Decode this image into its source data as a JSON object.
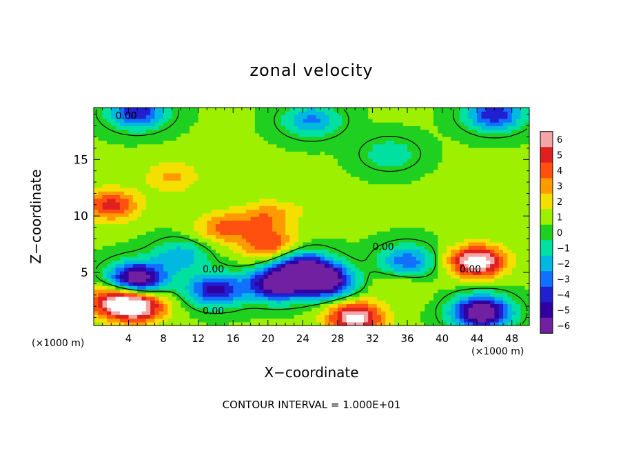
{
  "chart_data": {
    "type": "heatmap",
    "title": "zonal velocity",
    "xlabel": "X−coordinate",
    "ylabel": "Z−coordinate",
    "x_unit_left": "(×1000 m)",
    "x_unit_right": "(×1000 m)",
    "xlim": [
      0,
      50
    ],
    "ylim": [
      0.3,
      19.6
    ],
    "x_ticks": [
      4,
      8,
      12,
      16,
      20,
      24,
      28,
      32,
      36,
      40,
      44,
      48
    ],
    "y_ticks": [
      5,
      10,
      15
    ],
    "colorbar": {
      "range": [
        -6,
        6
      ],
      "ticks": [
        "6",
        "5",
        "4",
        "3",
        "2",
        "1",
        "0",
        "−1",
        "−2",
        "−3",
        "−4",
        "−5",
        "−6"
      ],
      "colors": [
        "#f4a6a6",
        "#e02020",
        "#ff5010",
        "#ff9a00",
        "#f4e000",
        "#9cf000",
        "#20d020",
        "#00e0a0",
        "#00b8e0",
        "#1070ff",
        "#2020d0",
        "#3000a0",
        "#7020a0"
      ]
    },
    "background_value": 0.5,
    "contour_level_label": "0.00",
    "features": [
      {
        "x": 2.0,
        "z": 11.0,
        "value": 4.5
      },
      {
        "x": 15.0,
        "z": 9.0,
        "value": 3.5
      },
      {
        "x": 20.0,
        "z": 10.0,
        "value": 3.0
      },
      {
        "x": 20.0,
        "z": 7.5,
        "value": 4.0
      },
      {
        "x": 9.0,
        "z": 13.5,
        "value": 2.5
      },
      {
        "x": 26.0,
        "z": 11.0,
        "value": 1.2
      },
      {
        "x": 5.0,
        "z": 4.5,
        "value": -6.5
      },
      {
        "x": 14.0,
        "z": 3.5,
        "value": -4.5
      },
      {
        "x": 24.0,
        "z": 5.5,
        "value": -5.0
      },
      {
        "x": 26.5,
        "z": 4.2,
        "value": -6.5
      },
      {
        "x": 21.0,
        "z": 4.0,
        "value": -6.2
      },
      {
        "x": 36.0,
        "z": 6.0,
        "value": -3.0
      },
      {
        "x": 44.0,
        "z": 6.0,
        "value": 7.0
      },
      {
        "x": 44.5,
        "z": 1.5,
        "value": -7.0
      },
      {
        "x": 2.0,
        "z": 2.5,
        "value": 4.5
      },
      {
        "x": 5.0,
        "z": 2.0,
        "value": 6.5
      },
      {
        "x": 30.0,
        "z": 1.0,
        "value": 6.5
      },
      {
        "x": 35.0,
        "z": 4.0,
        "value": 1.5
      },
      {
        "x": 34.0,
        "z": 15.5,
        "value": -1.2
      },
      {
        "x": 25.0,
        "z": 18.5,
        "value": -2.5
      },
      {
        "x": 5.0,
        "z": 19.2,
        "value": -4.0
      },
      {
        "x": 46.0,
        "z": 19.0,
        "value": -4.0
      },
      {
        "x": 43.0,
        "z": 12.0,
        "value": 1.2
      },
      {
        "x": 10.0,
        "z": 6.5,
        "value": -2.0
      }
    ]
  },
  "footer": {
    "contour_interval": "CONTOUR INTERVAL = 1.000E+01"
  }
}
